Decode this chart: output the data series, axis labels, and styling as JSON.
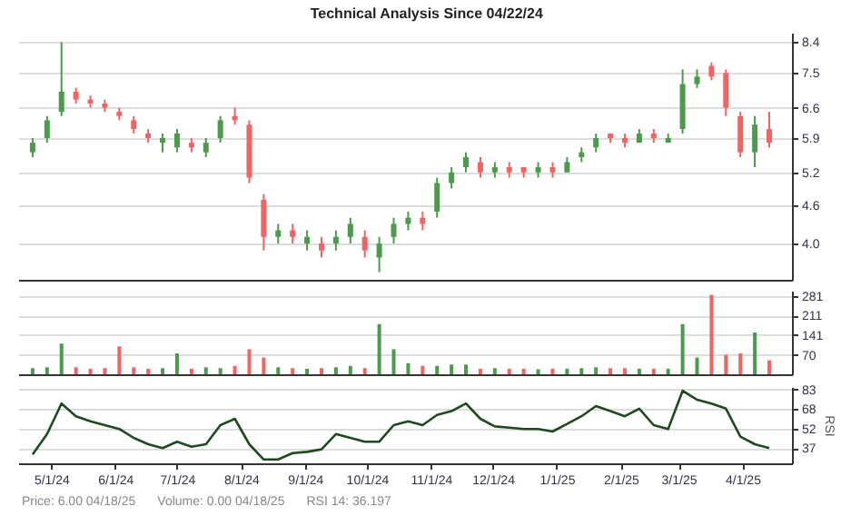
{
  "chart_data": [
    {
      "type": "candlestick",
      "title": "Technical Analysis Since 04/22/24",
      "x": [
        "2024-04-22",
        "2024-04-29",
        "2024-05-06",
        "2024-05-13",
        "2024-05-20",
        "2024-05-27",
        "2024-06-03",
        "2024-06-10",
        "2024-06-17",
        "2024-06-24",
        "2024-07-01",
        "2024-07-08",
        "2024-07-15",
        "2024-07-22",
        "2024-07-29",
        "2024-08-05",
        "2024-08-12",
        "2024-08-19",
        "2024-08-26",
        "2024-09-02",
        "2024-09-09",
        "2024-09-16",
        "2024-09-23",
        "2024-09-30",
        "2024-10-07",
        "2024-10-14",
        "2024-10-21",
        "2024-10-28",
        "2024-11-04",
        "2024-11-11",
        "2024-11-18",
        "2024-11-25",
        "2024-12-02",
        "2024-12-09",
        "2024-12-16",
        "2024-12-23",
        "2024-12-30",
        "2025-01-06",
        "2025-01-13",
        "2025-01-20",
        "2025-01-27",
        "2025-02-03",
        "2025-02-10",
        "2025-02-17",
        "2025-02-24",
        "2025-03-03",
        "2025-03-10",
        "2025-03-17",
        "2025-03-24",
        "2025-03-31",
        "2025-04-07",
        "2025-04-14"
      ],
      "ohlc": [
        [
          5.6,
          5.9,
          5.5,
          5.8
        ],
        [
          5.9,
          6.4,
          5.8,
          6.3
        ],
        [
          6.5,
          8.4,
          6.4,
          7.0
        ],
        [
          7.0,
          7.1,
          6.7,
          6.8
        ],
        [
          6.8,
          6.9,
          6.6,
          6.7
        ],
        [
          6.7,
          6.8,
          6.5,
          6.6
        ],
        [
          6.5,
          6.6,
          6.3,
          6.4
        ],
        [
          6.3,
          6.4,
          6.0,
          6.1
        ],
        [
          6.0,
          6.1,
          5.8,
          5.9
        ],
        [
          5.8,
          6.0,
          5.6,
          5.9
        ],
        [
          5.7,
          6.1,
          5.6,
          6.0
        ],
        [
          5.8,
          5.9,
          5.6,
          5.7
        ],
        [
          5.6,
          5.9,
          5.5,
          5.8
        ],
        [
          5.9,
          6.4,
          5.8,
          6.3
        ],
        [
          6.4,
          6.6,
          6.2,
          6.3
        ],
        [
          6.2,
          6.3,
          5.0,
          5.1
        ],
        [
          4.7,
          4.8,
          3.9,
          4.1
        ],
        [
          4.1,
          4.3,
          4.0,
          4.2
        ],
        [
          4.2,
          4.3,
          4.0,
          4.1
        ],
        [
          4.0,
          4.2,
          3.9,
          4.1
        ],
        [
          4.0,
          4.1,
          3.8,
          3.9
        ],
        [
          4.0,
          4.2,
          3.9,
          4.1
        ],
        [
          4.1,
          4.4,
          4.0,
          4.3
        ],
        [
          4.1,
          4.2,
          3.8,
          3.9
        ],
        [
          3.8,
          4.1,
          3.6,
          4.0
        ],
        [
          4.1,
          4.4,
          4.0,
          4.3
        ],
        [
          4.3,
          4.5,
          4.2,
          4.4
        ],
        [
          4.4,
          4.5,
          4.2,
          4.3
        ],
        [
          4.5,
          5.1,
          4.4,
          5.0
        ],
        [
          5.0,
          5.3,
          4.9,
          5.2
        ],
        [
          5.3,
          5.6,
          5.2,
          5.5
        ],
        [
          5.4,
          5.5,
          5.1,
          5.2
        ],
        [
          5.2,
          5.4,
          5.1,
          5.3
        ],
        [
          5.3,
          5.4,
          5.1,
          5.2
        ],
        [
          5.3,
          5.3,
          5.1,
          5.2
        ],
        [
          5.2,
          5.4,
          5.1,
          5.3
        ],
        [
          5.3,
          5.4,
          5.1,
          5.2
        ],
        [
          5.2,
          5.5,
          5.2,
          5.4
        ],
        [
          5.5,
          5.7,
          5.4,
          5.6
        ],
        [
          5.7,
          6.0,
          5.6,
          5.9
        ],
        [
          6.0,
          6.0,
          5.8,
          5.9
        ],
        [
          5.9,
          6.0,
          5.7,
          5.8
        ],
        [
          5.8,
          6.1,
          5.8,
          6.0
        ],
        [
          6.0,
          6.1,
          5.8,
          5.9
        ],
        [
          5.8,
          6.0,
          5.8,
          5.9
        ],
        [
          6.1,
          7.6,
          6.0,
          7.2
        ],
        [
          7.2,
          7.6,
          7.1,
          7.4
        ],
        [
          7.7,
          7.8,
          7.3,
          7.4
        ],
        [
          7.5,
          7.6,
          6.4,
          6.6
        ],
        [
          6.4,
          6.5,
          5.5,
          5.6
        ],
        [
          5.6,
          6.4,
          5.3,
          6.2
        ],
        [
          6.1,
          6.5,
          5.7,
          5.8
        ]
      ],
      "colors": [
        "#4c9a4c",
        "#4c9a4c",
        "#4c9a4c",
        "#f06464",
        "#f06464",
        "#f06464",
        "#f06464",
        "#f06464",
        "#f06464",
        "#4c9a4c",
        "#4c9a4c",
        "#f06464",
        "#4c9a4c",
        "#4c9a4c",
        "#f06464",
        "#f06464",
        "#f06464",
        "#4c9a4c",
        "#f06464",
        "#4c9a4c",
        "#f06464",
        "#4c9a4c",
        "#4c9a4c",
        "#f06464",
        "#4c9a4c",
        "#4c9a4c",
        "#4c9a4c",
        "#f06464",
        "#4c9a4c",
        "#4c9a4c",
        "#4c9a4c",
        "#f06464",
        "#4c9a4c",
        "#f06464",
        "#f06464",
        "#4c9a4c",
        "#f06464",
        "#4c9a4c",
        "#4c9a4c",
        "#4c9a4c",
        "#f06464",
        "#f06464",
        "#4c9a4c",
        "#f06464",
        "#4c9a4c",
        "#4c9a4c",
        "#4c9a4c",
        "#f06464",
        "#f06464",
        "#f06464",
        "#4c9a4c",
        "#f06464"
      ],
      "xlim": [
        "2024-04-15",
        "2025-04-25"
      ],
      "log": true,
      "ylim": [
        3.5,
        8.7
      ],
      "yticks": [
        {
          "value": 4,
          "label": "4.0"
        },
        4.6,
        5.2,
        5.9,
        6.6,
        7.5,
        8.4
      ],
      "grid": "y",
      "tick_labels": "y"
    },
    {
      "type": "bar",
      "x": [
        "2024-04-22",
        "2024-04-29",
        "2024-05-06",
        "2024-05-13",
        "2024-05-20",
        "2024-05-27",
        "2024-06-03",
        "2024-06-10",
        "2024-06-17",
        "2024-06-24",
        "2024-07-01",
        "2024-07-08",
        "2024-07-15",
        "2024-07-22",
        "2024-07-29",
        "2024-08-05",
        "2024-08-12",
        "2024-08-19",
        "2024-08-26",
        "2024-09-02",
        "2024-09-09",
        "2024-09-16",
        "2024-09-23",
        "2024-09-30",
        "2024-10-07",
        "2024-10-14",
        "2024-10-21",
        "2024-10-28",
        "2024-11-04",
        "2024-11-11",
        "2024-11-18",
        "2024-11-25",
        "2024-12-02",
        "2024-12-09",
        "2024-12-16",
        "2024-12-23",
        "2024-12-30",
        "2025-01-06",
        "2025-01-13",
        "2025-01-20",
        "2025-01-27",
        "2025-02-03",
        "2025-02-10",
        "2025-02-17",
        "2025-02-24",
        "2025-03-03",
        "2025-03-10",
        "2025-03-17",
        "2025-03-24",
        "2025-03-31",
        "2025-04-07",
        "2025-04-14"
      ],
      "values": [
        22,
        25,
        110,
        25,
        20,
        22,
        100,
        25,
        20,
        22,
        75,
        20,
        25,
        22,
        30,
        90,
        60,
        25,
        22,
        20,
        22,
        25,
        30,
        22,
        180,
        90,
        40,
        30,
        30,
        35,
        35,
        20,
        22,
        20,
        20,
        18,
        20,
        20,
        22,
        25,
        22,
        22,
        20,
        20,
        20,
        180,
        60,
        285,
        70,
        75,
        150,
        50
      ],
      "colors": [
        "#4c9a4c",
        "#4c9a4c",
        "#4c9a4c",
        "#f06464",
        "#f06464",
        "#f06464",
        "#f06464",
        "#f06464",
        "#f06464",
        "#4c9a4c",
        "#4c9a4c",
        "#f06464",
        "#4c9a4c",
        "#4c9a4c",
        "#f06464",
        "#f06464",
        "#f06464",
        "#4c9a4c",
        "#f06464",
        "#4c9a4c",
        "#f06464",
        "#4c9a4c",
        "#4c9a4c",
        "#f06464",
        "#4c9a4c",
        "#4c9a4c",
        "#4c9a4c",
        "#f06464",
        "#4c9a4c",
        "#4c9a4c",
        "#4c9a4c",
        "#f06464",
        "#4c9a4c",
        "#f06464",
        "#f06464",
        "#4c9a4c",
        "#f06464",
        "#4c9a4c",
        "#4c9a4c",
        "#4c9a4c",
        "#f06464",
        "#f06464",
        "#4c9a4c",
        "#f06464",
        "#4c9a4c",
        "#4c9a4c",
        "#4c9a4c",
        "#f06464",
        "#f06464",
        "#f06464",
        "#4c9a4c",
        "#f06464"
      ],
      "xlim": [
        "2024-04-15",
        "2025-04-25"
      ],
      "ylim": [
        0,
        300
      ],
      "yticks": [
        70,
        141,
        211,
        281
      ],
      "grid": "y",
      "tick_labels": "y"
    },
    {
      "type": "line",
      "ylabel": "RSI",
      "x": [
        "2024-04-22",
        "2024-04-29",
        "2024-05-06",
        "2024-05-13",
        "2024-05-20",
        "2024-05-27",
        "2024-06-03",
        "2024-06-10",
        "2024-06-17",
        "2024-06-24",
        "2024-07-01",
        "2024-07-08",
        "2024-07-15",
        "2024-07-22",
        "2024-07-29",
        "2024-08-05",
        "2024-08-12",
        "2024-08-19",
        "2024-08-26",
        "2024-09-02",
        "2024-09-09",
        "2024-09-16",
        "2024-09-23",
        "2024-09-30",
        "2024-10-07",
        "2024-10-14",
        "2024-10-21",
        "2024-10-28",
        "2024-11-04",
        "2024-11-11",
        "2024-11-18",
        "2024-11-25",
        "2024-12-02",
        "2024-12-09",
        "2024-12-16",
        "2024-12-23",
        "2024-12-30",
        "2025-01-06",
        "2025-01-13",
        "2025-01-20",
        "2025-01-27",
        "2025-02-03",
        "2025-02-10",
        "2025-02-17",
        "2025-02-24",
        "2025-03-03",
        "2025-03-10",
        "2025-03-17",
        "2025-03-24",
        "2025-03-31",
        "2025-04-07",
        "2025-04-14"
      ],
      "series": [
        {
          "color": "#1f4a1f",
          "values": [
            32,
            48,
            72,
            62,
            58,
            55,
            52,
            45,
            40,
            37,
            42,
            38,
            40,
            55,
            60,
            40,
            28,
            28,
            33,
            34,
            36,
            48,
            45,
            42,
            42,
            55,
            58,
            55,
            63,
            66,
            72,
            60,
            54,
            53,
            52,
            52,
            50,
            56,
            62,
            70,
            66,
            62,
            68,
            55,
            52,
            82,
            75,
            72,
            68,
            46,
            40,
            37
          ]
        }
      ],
      "xlim": [
        "2024-04-15",
        "2025-04-25"
      ],
      "ylim": [
        25,
        85
      ],
      "yticks": [
        37,
        52,
        68,
        83
      ],
      "xticks": [
        {
          "value": "2024-05-01",
          "label": "5/1/24"
        },
        {
          "value": "2024-06-01",
          "label": "6/1/24"
        },
        {
          "value": "2024-07-01",
          "label": "7/1/24"
        },
        {
          "value": "2024-08-01",
          "label": "8/1/24"
        },
        {
          "value": "2024-09-01",
          "label": "9/1/24"
        },
        {
          "value": "2024-10-01",
          "label": "10/1/24"
        },
        {
          "value": "2024-11-01",
          "label": "11/1/24"
        },
        {
          "value": "2024-12-01",
          "label": "12/1/24"
        },
        {
          "value": "2025-01-01",
          "label": "1/1/25"
        },
        {
          "value": "2025-02-01",
          "label": "2/1/25"
        },
        {
          "value": "2025-03-01",
          "label": "3/1/25"
        },
        {
          "value": "2025-04-01",
          "label": "4/1/25"
        }
      ],
      "grid": "y",
      "annotations": [
        "Price: 6.00 04/18/25",
        "Volume: 0.00 04/18/25",
        "RSI 14: 36.197"
      ]
    }
  ]
}
